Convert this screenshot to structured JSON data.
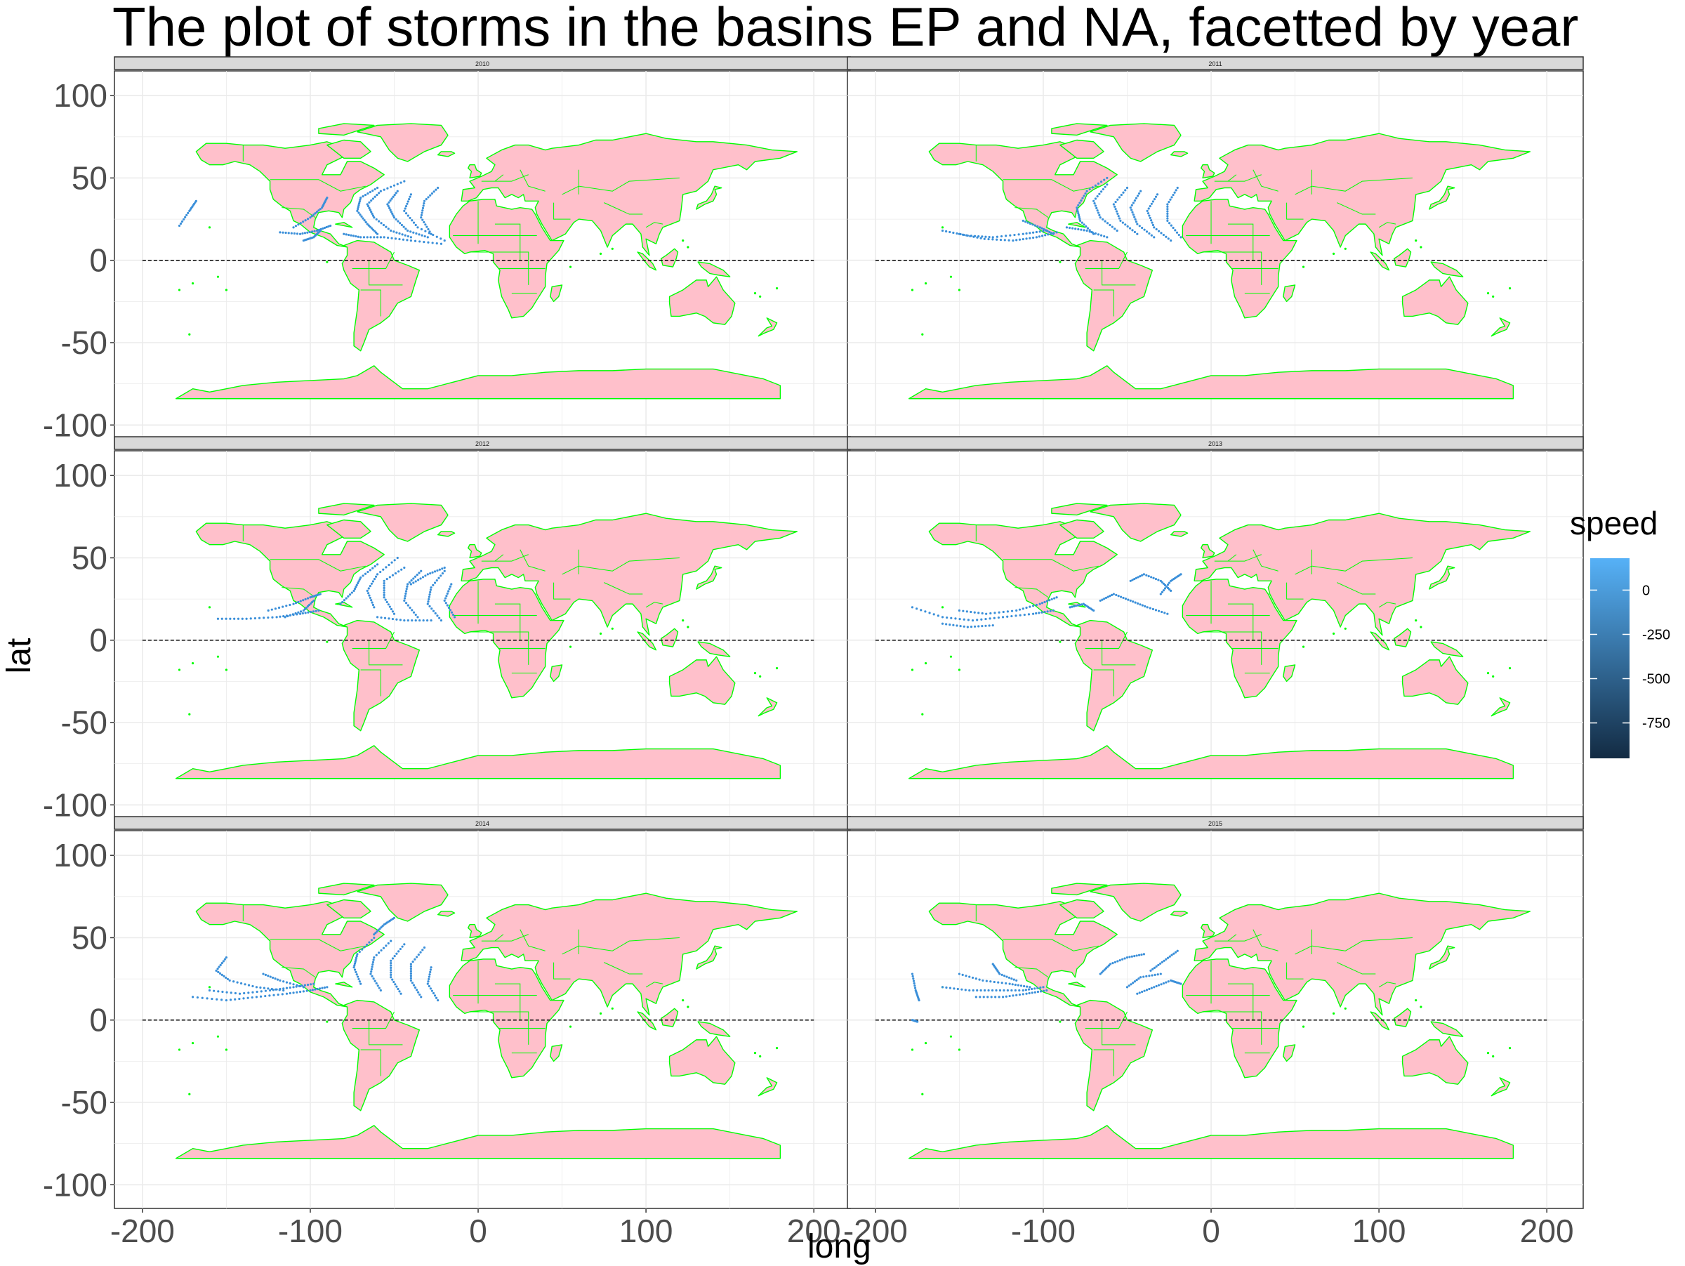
{
  "title": "The plot of storms in the basins EP and NA, facetted by year",
  "axes": {
    "xlabel": "long",
    "ylabel": "lat"
  },
  "legend": {
    "title": "speed",
    "ticks": [
      "0",
      "-250",
      "-500",
      "-750"
    ],
    "tick_values": [
      0,
      -250,
      -500,
      -750
    ],
    "range": [
      -950,
      180
    ],
    "low_color": "#132B43",
    "high_color": "#56B1F7"
  },
  "colors": {
    "land_fill": "#FFC0CB",
    "land_border": "#00FF00",
    "storm": "#3A8FD9",
    "strip_bg": "#D9D9D9",
    "equator": "#000000"
  },
  "chart_data": {
    "type": "scatter",
    "xlim": [
      -215,
      220
    ],
    "ylim": [
      -105,
      115
    ],
    "x_ticks": [
      -200,
      -100,
      0,
      100,
      200
    ],
    "y_ticks": [
      -100,
      -50,
      0,
      50,
      100
    ],
    "grid": true,
    "legend_position": "right",
    "reference_line": {
      "y": 0,
      "x_range": [
        -200,
        200
      ],
      "style": "dashed"
    },
    "facets": [
      {
        "label": "2010",
        "tracks": [
          [
            [
              -178,
              21
            ],
            [
              -172,
              30
            ],
            [
              -168,
              36
            ]
          ],
          [
            [
              -118,
              17
            ],
            [
              -106,
              16
            ],
            [
              -96,
              18
            ],
            [
              -88,
              21
            ]
          ],
          [
            [
              -110,
              20
            ],
            [
              -100,
              26
            ],
            [
              -93,
              32
            ],
            [
              -90,
              38
            ]
          ],
          [
            [
              -60,
              16
            ],
            [
              -66,
              22
            ],
            [
              -72,
              30
            ],
            [
              -70,
              38
            ],
            [
              -60,
              44
            ]
          ],
          [
            [
              -40,
              14
            ],
            [
              -52,
              18
            ],
            [
              -62,
              26
            ],
            [
              -66,
              34
            ],
            [
              -58,
              42
            ],
            [
              -44,
              48
            ]
          ],
          [
            [
              -30,
              14
            ],
            [
              -42,
              18
            ],
            [
              -50,
              26
            ],
            [
              -54,
              34
            ],
            [
              -48,
              42
            ]
          ],
          [
            [
              -20,
              12
            ],
            [
              -36,
              20
            ],
            [
              -44,
              30
            ],
            [
              -40,
              40
            ]
          ],
          [
            [
              -28,
              16
            ],
            [
              -34,
              26
            ],
            [
              -32,
              36
            ],
            [
              -24,
              44
            ]
          ],
          [
            [
              -80,
              16
            ],
            [
              -70,
              14
            ],
            [
              -56,
              14
            ],
            [
              -40,
              12
            ],
            [
              -22,
              10
            ]
          ],
          [
            [
              -94,
              18
            ],
            [
              -98,
              14
            ],
            [
              -104,
              12
            ]
          ]
        ]
      },
      {
        "label": "2011",
        "tracks": [
          [
            [
              -160,
              18
            ],
            [
              -145,
              15
            ],
            [
              -130,
              14
            ],
            [
              -112,
              16
            ],
            [
              -98,
              18
            ]
          ],
          [
            [
              -150,
              16
            ],
            [
              -135,
              13
            ],
            [
              -118,
              12
            ],
            [
              -104,
              14
            ],
            [
              -92,
              17
            ]
          ],
          [
            [
              -112,
              24
            ],
            [
              -102,
              20
            ],
            [
              -94,
              16
            ]
          ],
          [
            [
              -70,
              16
            ],
            [
              -78,
              24
            ],
            [
              -80,
              32
            ],
            [
              -74,
              42
            ],
            [
              -62,
              50
            ]
          ],
          [
            [
              -56,
              18
            ],
            [
              -66,
              26
            ],
            [
              -70,
              36
            ],
            [
              -62,
              46
            ]
          ],
          [
            [
              -44,
              16
            ],
            [
              -54,
              24
            ],
            [
              -58,
              34
            ],
            [
              -50,
              44
            ]
          ],
          [
            [
              -34,
              14
            ],
            [
              -44,
              22
            ],
            [
              -48,
              32
            ],
            [
              -42,
              42
            ]
          ],
          [
            [
              -24,
              12
            ],
            [
              -34,
              20
            ],
            [
              -38,
              30
            ],
            [
              -32,
              40
            ]
          ],
          [
            [
              -18,
              14
            ],
            [
              -26,
              24
            ],
            [
              -26,
              34
            ],
            [
              -20,
              44
            ]
          ],
          [
            [
              -62,
              14
            ],
            [
              -74,
              18
            ],
            [
              -86,
              20
            ]
          ]
        ]
      },
      {
        "label": "2012",
        "tracks": [
          [
            [
              -155,
              13
            ],
            [
              -138,
              13
            ],
            [
              -120,
              14
            ],
            [
              -106,
              16
            ],
            [
              -95,
              18
            ]
          ],
          [
            [
              -125,
              18
            ],
            [
              -110,
              22
            ],
            [
              -100,
              26
            ],
            [
              -94,
              28
            ]
          ],
          [
            [
              -115,
              14
            ],
            [
              -104,
              18
            ],
            [
              -98,
              24
            ]
          ],
          [
            [
              -82,
              22
            ],
            [
              -74,
              30
            ],
            [
              -70,
              38
            ],
            [
              -60,
              46
            ]
          ],
          [
            [
              -62,
              20
            ],
            [
              -66,
              30
            ],
            [
              -60,
              40
            ],
            [
              -48,
              50
            ]
          ],
          [
            [
              -50,
              16
            ],
            [
              -56,
              26
            ],
            [
              -56,
              36
            ],
            [
              -44,
              44
            ]
          ],
          [
            [
              -36,
              14
            ],
            [
              -44,
              24
            ],
            [
              -42,
              34
            ],
            [
              -34,
              42
            ]
          ],
          [
            [
              -22,
              12
            ],
            [
              -30,
              22
            ],
            [
              -28,
              32
            ],
            [
              -20,
              42
            ]
          ],
          [
            [
              -14,
              14
            ],
            [
              -20,
              24
            ],
            [
              -16,
              34
            ]
          ],
          [
            [
              -40,
              34
            ],
            [
              -30,
              40
            ],
            [
              -20,
              44
            ]
          ],
          [
            [
              -60,
              14
            ],
            [
              -44,
              12
            ],
            [
              -28,
              12
            ]
          ]
        ]
      },
      {
        "label": "2013",
        "tracks": [
          [
            [
              -178,
              20
            ],
            [
              -160,
              14
            ],
            [
              -142,
              12
            ],
            [
              -124,
              14
            ],
            [
              -106,
              16
            ],
            [
              -94,
              18
            ]
          ],
          [
            [
              -150,
              18
            ],
            [
              -134,
              16
            ],
            [
              -116,
              18
            ],
            [
              -102,
              22
            ],
            [
              -92,
              26
            ]
          ],
          [
            [
              -160,
              10
            ],
            [
              -145,
              8
            ],
            [
              -130,
              9
            ]
          ],
          [
            [
              -66,
              24
            ],
            [
              -58,
              28
            ],
            [
              -48,
              24
            ],
            [
              -38,
              20
            ],
            [
              -26,
              16
            ]
          ],
          [
            [
              -48,
              36
            ],
            [
              -40,
              40
            ],
            [
              -30,
              36
            ],
            [
              -24,
              30
            ]
          ],
          [
            [
              -30,
              28
            ],
            [
              -24,
              36
            ],
            [
              -18,
              40
            ]
          ],
          [
            [
              -70,
              18
            ],
            [
              -76,
              22
            ],
            [
              -84,
              20
            ]
          ]
        ]
      },
      {
        "label": "2014",
        "tracks": [
          [
            [
              -170,
              14
            ],
            [
              -150,
              12
            ],
            [
              -132,
              14
            ],
            [
              -114,
              16
            ],
            [
              -100,
              18
            ],
            [
              -90,
              20
            ]
          ],
          [
            [
              -160,
              18
            ],
            [
              -142,
              16
            ],
            [
              -124,
              18
            ],
            [
              -110,
              20
            ],
            [
              -98,
              22
            ]
          ],
          [
            [
              -150,
              38
            ],
            [
              -156,
              30
            ],
            [
              -148,
              24
            ],
            [
              -132,
              20
            ],
            [
              -116,
              18
            ]
          ],
          [
            [
              -128,
              28
            ],
            [
              -118,
              24
            ],
            [
              -104,
              20
            ]
          ],
          [
            [
              -70,
              22
            ],
            [
              -74,
              32
            ],
            [
              -72,
              40
            ],
            [
              -62,
              50
            ]
          ],
          [
            [
              -58,
              18
            ],
            [
              -64,
              28
            ],
            [
              -62,
              38
            ],
            [
              -52,
              48
            ]
          ],
          [
            [
              -46,
              16
            ],
            [
              -52,
              26
            ],
            [
              -52,
              36
            ],
            [
              -44,
              46
            ]
          ],
          [
            [
              -34,
              14
            ],
            [
              -40,
              24
            ],
            [
              -40,
              34
            ],
            [
              -32,
              44
            ]
          ],
          [
            [
              -24,
              12
            ],
            [
              -30,
              22
            ],
            [
              -28,
              32
            ]
          ],
          [
            [
              -62,
              52
            ],
            [
              -56,
              58
            ],
            [
              -50,
              62
            ]
          ]
        ]
      },
      {
        "label": "2015",
        "tracks": [
          [
            [
              -178,
              28
            ],
            [
              -176,
              18
            ],
            [
              -174,
              12
            ]
          ],
          [
            [
              -160,
              20
            ],
            [
              -144,
              18
            ],
            [
              -128,
              18
            ],
            [
              -112,
              18
            ],
            [
              -100,
              20
            ]
          ],
          [
            [
              -150,
              28
            ],
            [
              -136,
              24
            ],
            [
              -120,
              22
            ],
            [
              -108,
              20
            ]
          ],
          [
            [
              -140,
              14
            ],
            [
              -124,
              14
            ],
            [
              -110,
              16
            ],
            [
              -98,
              18
            ]
          ],
          [
            [
              -130,
              34
            ],
            [
              -126,
              28
            ],
            [
              -116,
              24
            ]
          ],
          [
            [
              -66,
              28
            ],
            [
              -60,
              34
            ],
            [
              -50,
              38
            ],
            [
              -40,
              40
            ]
          ],
          [
            [
              -44,
              16
            ],
            [
              -34,
              20
            ],
            [
              -24,
              24
            ],
            [
              -18,
              22
            ]
          ],
          [
            [
              -36,
              30
            ],
            [
              -28,
              36
            ],
            [
              -20,
              42
            ]
          ],
          [
            [
              -50,
              20
            ],
            [
              -42,
              26
            ],
            [
              -30,
              28
            ]
          ],
          [
            [
              -178,
              0
            ],
            [
              -175,
              -1
            ]
          ]
        ]
      }
    ]
  }
}
